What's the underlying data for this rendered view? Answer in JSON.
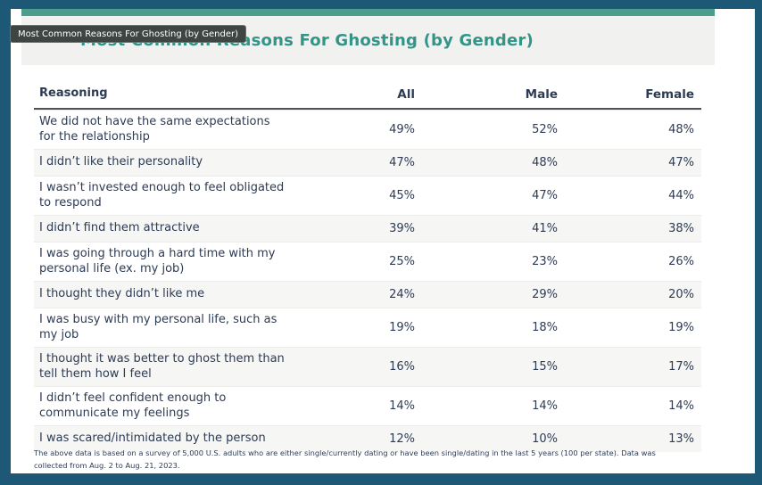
{
  "frame": {
    "border_color": "#1d5977",
    "strip_color": "#4d9d8f",
    "band_color": "#f1f1ef"
  },
  "tooltip": {
    "text": "Most Common Reasons For Ghosting (by Gender)"
  },
  "chart_data": {
    "type": "table",
    "title": "Most Common Reasons For Ghosting (by Gender)",
    "title_color": "#339488",
    "columns": [
      "Reasoning",
      "All",
      "Male",
      "Female"
    ],
    "rows": [
      {
        "reason": "We did not have the same expectations\nfor the relationship",
        "all": "49%",
        "male": "52%",
        "female": "48%"
      },
      {
        "reason": "I didn’t like their personality",
        "all": "47%",
        "male": "48%",
        "female": "47%"
      },
      {
        "reason": "I wasn’t invested enough to feel obligated\nto respond",
        "all": "45%",
        "male": "47%",
        "female": "44%"
      },
      {
        "reason": "I didn’t find them attractive",
        "all": "39%",
        "male": "41%",
        "female": "38%"
      },
      {
        "reason": "I was going through a hard time with my\npersonal life (ex. my job)",
        "all": "25%",
        "male": "23%",
        "female": "26%"
      },
      {
        "reason": "I thought they didn’t like me",
        "all": "24%",
        "male": "29%",
        "female": "20%"
      },
      {
        "reason": "I was busy with my personal life, such as\nmy job",
        "all": "19%",
        "male": "18%",
        "female": "19%"
      },
      {
        "reason": "I thought it was better to ghost them than\ntell them how I feel",
        "all": "16%",
        "male": "15%",
        "female": "17%"
      },
      {
        "reason": "I didn’t feel confident enough to\ncommunicate my feelings",
        "all": "14%",
        "male": "14%",
        "female": "14%"
      },
      {
        "reason": "I was scared/intimidated by the person",
        "all": "12%",
        "male": "10%",
        "female": "13%"
      }
    ],
    "footnote": "The above data is based on a survey of 5,000 U.S. adults who are either single/currently dating or have been single/dating in the last 5 years (100 per state). Data was\ncollected from Aug. 2 to Aug. 21, 2023."
  }
}
